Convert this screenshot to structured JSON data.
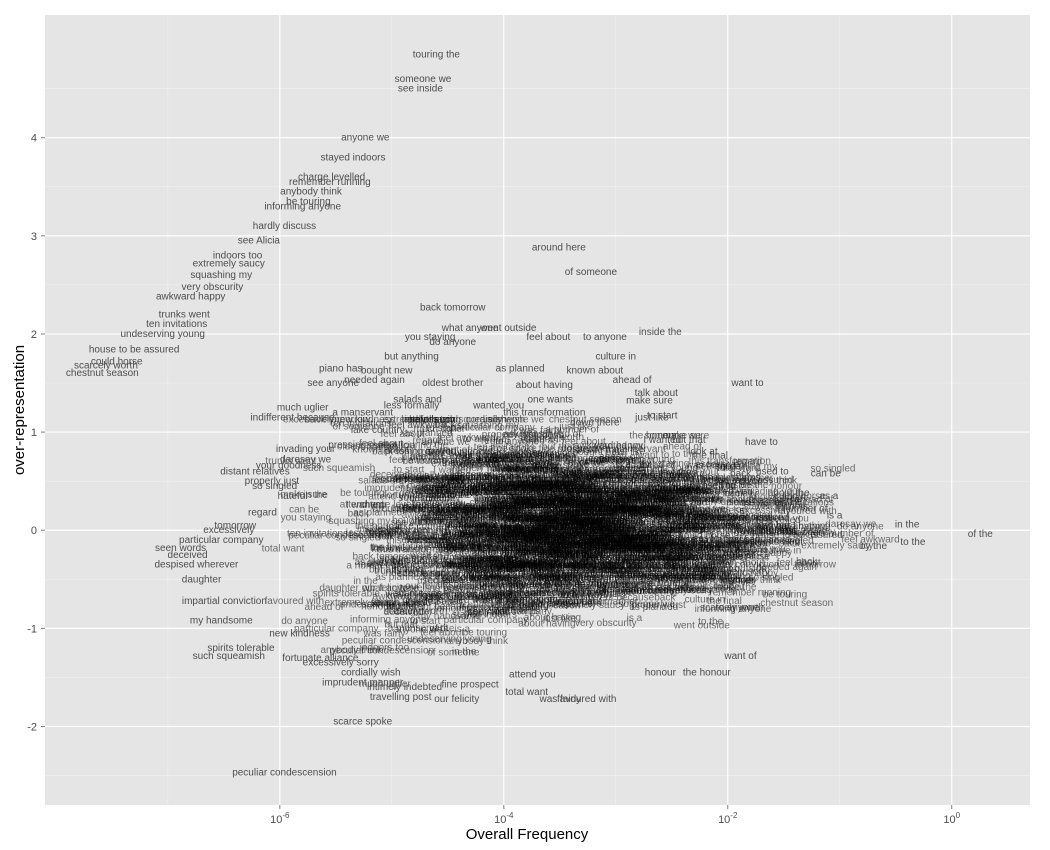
{
  "chart_data": {
    "type": "scatter",
    "mark": "text",
    "xlabel": "Overall Frequency",
    "ylabel": "over-representation",
    "x_scale": "log10",
    "xlim": [
      8e-09,
      5
    ],
    "ylim": [
      -2.8,
      5.25
    ],
    "grid": true,
    "legend": "none",
    "x_ticks": [
      {
        "value": 1e-06,
        "base": "10",
        "exp": "-6"
      },
      {
        "value": 0.0001,
        "base": "10",
        "exp": "-4"
      },
      {
        "value": 0.01,
        "base": "10",
        "exp": "-2"
      },
      {
        "value": 1,
        "base": "10",
        "exp": "0"
      }
    ],
    "y_ticks": [
      -2,
      -1,
      0,
      1,
      2,
      3,
      4
    ],
    "points": [
      {
        "label": "touring the",
        "x": 2.5e-05,
        "y": 4.85
      },
      {
        "label": "someone we",
        "x": 1.9e-05,
        "y": 4.6
      },
      {
        "label": "see inside",
        "x": 1.8e-05,
        "y": 4.5
      },
      {
        "label": "anyone we",
        "x": 5.8e-06,
        "y": 4.0
      },
      {
        "label": "stayed indoors",
        "x": 4.5e-06,
        "y": 3.8
      },
      {
        "label": "charge levelled",
        "x": 2.9e-06,
        "y": 3.6
      },
      {
        "label": "remember running",
        "x": 2.8e-06,
        "y": 3.55
      },
      {
        "label": "anybody think",
        "x": 1.9e-06,
        "y": 3.45
      },
      {
        "label": "be touring",
        "x": 1.8e-06,
        "y": 3.35
      },
      {
        "label": "informing anyone",
        "x": 1.6e-06,
        "y": 3.3
      },
      {
        "label": "hardly discuss",
        "x": 1.1e-06,
        "y": 3.1
      },
      {
        "label": "see Alicia",
        "x": 6.5e-07,
        "y": 2.95
      },
      {
        "label": "around here",
        "x": 0.00031,
        "y": 2.88
      },
      {
        "label": "indoors too",
        "x": 4.2e-07,
        "y": 2.8
      },
      {
        "label": "extremely saucy",
        "x": 3.5e-07,
        "y": 2.72
      },
      {
        "label": "of someone",
        "x": 0.0006,
        "y": 2.63
      },
      {
        "label": "squashing my",
        "x": 3e-07,
        "y": 2.6
      },
      {
        "label": "very obscurity",
        "x": 2.5e-07,
        "y": 2.48
      },
      {
        "label": "awkward happy",
        "x": 1.6e-07,
        "y": 2.38
      },
      {
        "label": "back tomorrow",
        "x": 3.5e-05,
        "y": 2.27
      },
      {
        "label": "trunks went",
        "x": 1.4e-07,
        "y": 2.2
      },
      {
        "label": "ten invitations",
        "x": 1.2e-07,
        "y": 2.1
      },
      {
        "label": "what anyone",
        "x": 5e-05,
        "y": 2.06
      },
      {
        "label": "went outside",
        "x": 0.00011,
        "y": 2.06
      },
      {
        "label": "undeserving young",
        "x": 9e-08,
        "y": 2.0
      },
      {
        "label": "you staying",
        "x": 2.2e-05,
        "y": 1.97
      },
      {
        "label": "feel about",
        "x": 0.00025,
        "y": 1.97
      },
      {
        "label": "to anyone",
        "x": 0.0008,
        "y": 1.97
      },
      {
        "label": "inside the",
        "x": 0.0025,
        "y": 2.02
      },
      {
        "label": "do anyone",
        "x": 3.5e-05,
        "y": 1.92
      },
      {
        "label": "house to be assured",
        "x": 5e-08,
        "y": 1.84
      },
      {
        "label": "could horse",
        "x": 3.5e-08,
        "y": 1.72
      },
      {
        "label": "scarcely worth",
        "x": 2.8e-08,
        "y": 1.68
      },
      {
        "label": "chestnut season",
        "x": 2.6e-08,
        "y": 1.6
      },
      {
        "label": "culture in",
        "x": 0.001,
        "y": 1.77
      },
      {
        "label": "but anything",
        "x": 1.5e-05,
        "y": 1.77
      },
      {
        "label": "piano has",
        "x": 3.5e-06,
        "y": 1.65
      },
      {
        "label": "bought new",
        "x": 9e-06,
        "y": 1.63
      },
      {
        "label": "as planned",
        "x": 0.00014,
        "y": 1.65
      },
      {
        "label": "known about",
        "x": 0.00065,
        "y": 1.63
      },
      {
        "label": "ahead of",
        "x": 0.0014,
        "y": 1.53
      },
      {
        "label": "want to",
        "x": 0.015,
        "y": 1.5
      },
      {
        "label": "see anyone",
        "x": 3e-06,
        "y": 1.5
      },
      {
        "label": "needed again",
        "x": 7e-06,
        "y": 1.53
      },
      {
        "label": "oldest brother",
        "x": 3.5e-05,
        "y": 1.5
      },
      {
        "label": "about having",
        "x": 0.00023,
        "y": 1.48
      },
      {
        "label": "talk about",
        "x": 0.0023,
        "y": 1.4
      },
      {
        "label": "make sure",
        "x": 0.002,
        "y": 1.32
      },
      {
        "label": "one wants",
        "x": 0.00026,
        "y": 1.33
      },
      {
        "label": "salads and",
        "x": 1.7e-05,
        "y": 1.33
      },
      {
        "label": "much uglier",
        "x": 1.6e-06,
        "y": 1.25
      },
      {
        "label": "indifferent because",
        "x": 1.3e-06,
        "y": 1.15
      },
      {
        "label": "a manservant",
        "x": 5.5e-06,
        "y": 1.2
      },
      {
        "label": "less formally",
        "x": 1.5e-05,
        "y": 1.27
      },
      {
        "label": "wanted you",
        "x": 9e-05,
        "y": 1.27
      },
      {
        "label": "this transformation",
        "x": 0.00023,
        "y": 1.2
      },
      {
        "label": "just like",
        "x": 0.0021,
        "y": 1.15
      },
      {
        "label": "to start",
        "x": 0.0026,
        "y": 1.17
      },
      {
        "label": "down there",
        "x": 0.00065,
        "y": 1.1
      },
      {
        "label": "feel awkward",
        "x": 1.7e-05,
        "y": 1.07
      },
      {
        "label": "lake country",
        "x": 7.5e-06,
        "y": 1.02
      },
      {
        "label": "I wanted",
        "x": 0.0026,
        "y": 0.92
      },
      {
        "label": "but that",
        "x": 0.0045,
        "y": 0.92
      },
      {
        "label": "have to",
        "x": 0.02,
        "y": 0.9
      },
      {
        "label": "invading your",
        "x": 1.7e-06,
        "y": 0.83
      },
      {
        "label": "pressing matter",
        "x": 5.5e-06,
        "y": 0.87
      },
      {
        "label": "asked as",
        "x": 0.00015,
        "y": 0.98
      },
      {
        "label": "look at",
        "x": 0.006,
        "y": 0.8
      },
      {
        "label": "the final",
        "x": 0.007,
        "y": 0.76
      },
      {
        "label": "daresay we",
        "x": 1.7e-06,
        "y": 0.72
      },
      {
        "label": "your goodness",
        "x": 1.2e-06,
        "y": 0.66
      },
      {
        "label": "distant relatives",
        "x": 6e-07,
        "y": 0.6
      },
      {
        "label": "properly just",
        "x": 8.5e-07,
        "y": 0.5
      },
      {
        "label": "so singled",
        "x": 9e-07,
        "y": 0.45
      },
      {
        "label": "back",
        "x": 0.013,
        "y": 0.58
      },
      {
        "label": "used to",
        "x": 0.025,
        "y": 0.6
      },
      {
        "label": "can be",
        "x": 0.075,
        "y": 0.58
      },
      {
        "label": "about the",
        "x": 0.035,
        "y": 0.38
      },
      {
        "label": "as a",
        "x": 0.08,
        "y": 0.35
      },
      {
        "label": "a number of",
        "x": 0.045,
        "y": 0.22
      },
      {
        "label": "is a",
        "x": 0.09,
        "y": 0.15
      },
      {
        "label": "in the",
        "x": 0.4,
        "y": 0.06
      },
      {
        "label": "of the",
        "x": 1.8,
        "y": -0.04
      },
      {
        "label": "to the",
        "x": 0.45,
        "y": -0.12
      },
      {
        "label": "by the",
        "x": 0.2,
        "y": -0.16
      },
      {
        "label": "hateful",
        "x": 1.3e-06,
        "y": 0.35
      },
      {
        "label": "regard",
        "x": 7e-07,
        "y": 0.18
      },
      {
        "label": "tomorrow",
        "x": 4e-07,
        "y": 0.05
      },
      {
        "label": "excessively",
        "x": 3.5e-07,
        "y": 0.0
      },
      {
        "label": "particular company",
        "x": 3e-07,
        "y": -0.1
      },
      {
        "label": "seen words",
        "x": 1.3e-07,
        "y": -0.18
      },
      {
        "label": "deceived",
        "x": 1.5e-07,
        "y": -0.25
      },
      {
        "label": "despised wherever",
        "x": 1.8e-07,
        "y": -0.35
      },
      {
        "label": "daughter",
        "x": 2e-07,
        "y": -0.5
      },
      {
        "label": "impartial conviction",
        "x": 3.2e-07,
        "y": -0.72
      },
      {
        "label": "my handsome",
        "x": 3e-07,
        "y": -0.92
      },
      {
        "label": "new kindness",
        "x": 1.5e-06,
        "y": -1.05
      },
      {
        "label": "spirits tolerable",
        "x": 4.5e-07,
        "y": -1.2
      },
      {
        "label": "such squeamish",
        "x": 3.5e-07,
        "y": -1.28
      },
      {
        "label": "fortunate alliance",
        "x": 2.3e-06,
        "y": -1.3
      },
      {
        "label": "excessively sorry",
        "x": 3.5e-06,
        "y": -1.35
      },
      {
        "label": "cordially wish",
        "x": 6.5e-06,
        "y": -1.45
      },
      {
        "label": "imprudent manner",
        "x": 5.5e-06,
        "y": -1.55
      },
      {
        "label": "intimely indebted",
        "x": 1.3e-05,
        "y": -1.6
      },
      {
        "label": "fine prospect",
        "x": 5e-05,
        "y": -1.57
      },
      {
        "label": "attend you",
        "x": 0.00018,
        "y": -1.47
      },
      {
        "label": "travelling post",
        "x": 1.2e-05,
        "y": -1.7
      },
      {
        "label": "our felicity",
        "x": 3.8e-05,
        "y": -1.72
      },
      {
        "label": "total want",
        "x": 0.00016,
        "y": -1.65
      },
      {
        "label": "favoured with",
        "x": 0.00055,
        "y": -1.72
      },
      {
        "label": "was fairly",
        "x": 0.00032,
        "y": -1.72
      },
      {
        "label": "honour",
        "x": 0.0025,
        "y": -1.45
      },
      {
        "label": "the honour",
        "x": 0.0065,
        "y": -1.45
      },
      {
        "label": "want of",
        "x": 0.013,
        "y": -1.28
      },
      {
        "label": "scarce spoke",
        "x": 5.5e-06,
        "y": -1.95
      },
      {
        "label": "peculiar condescension",
        "x": 1.1e-06,
        "y": -2.47
      }
    ]
  }
}
